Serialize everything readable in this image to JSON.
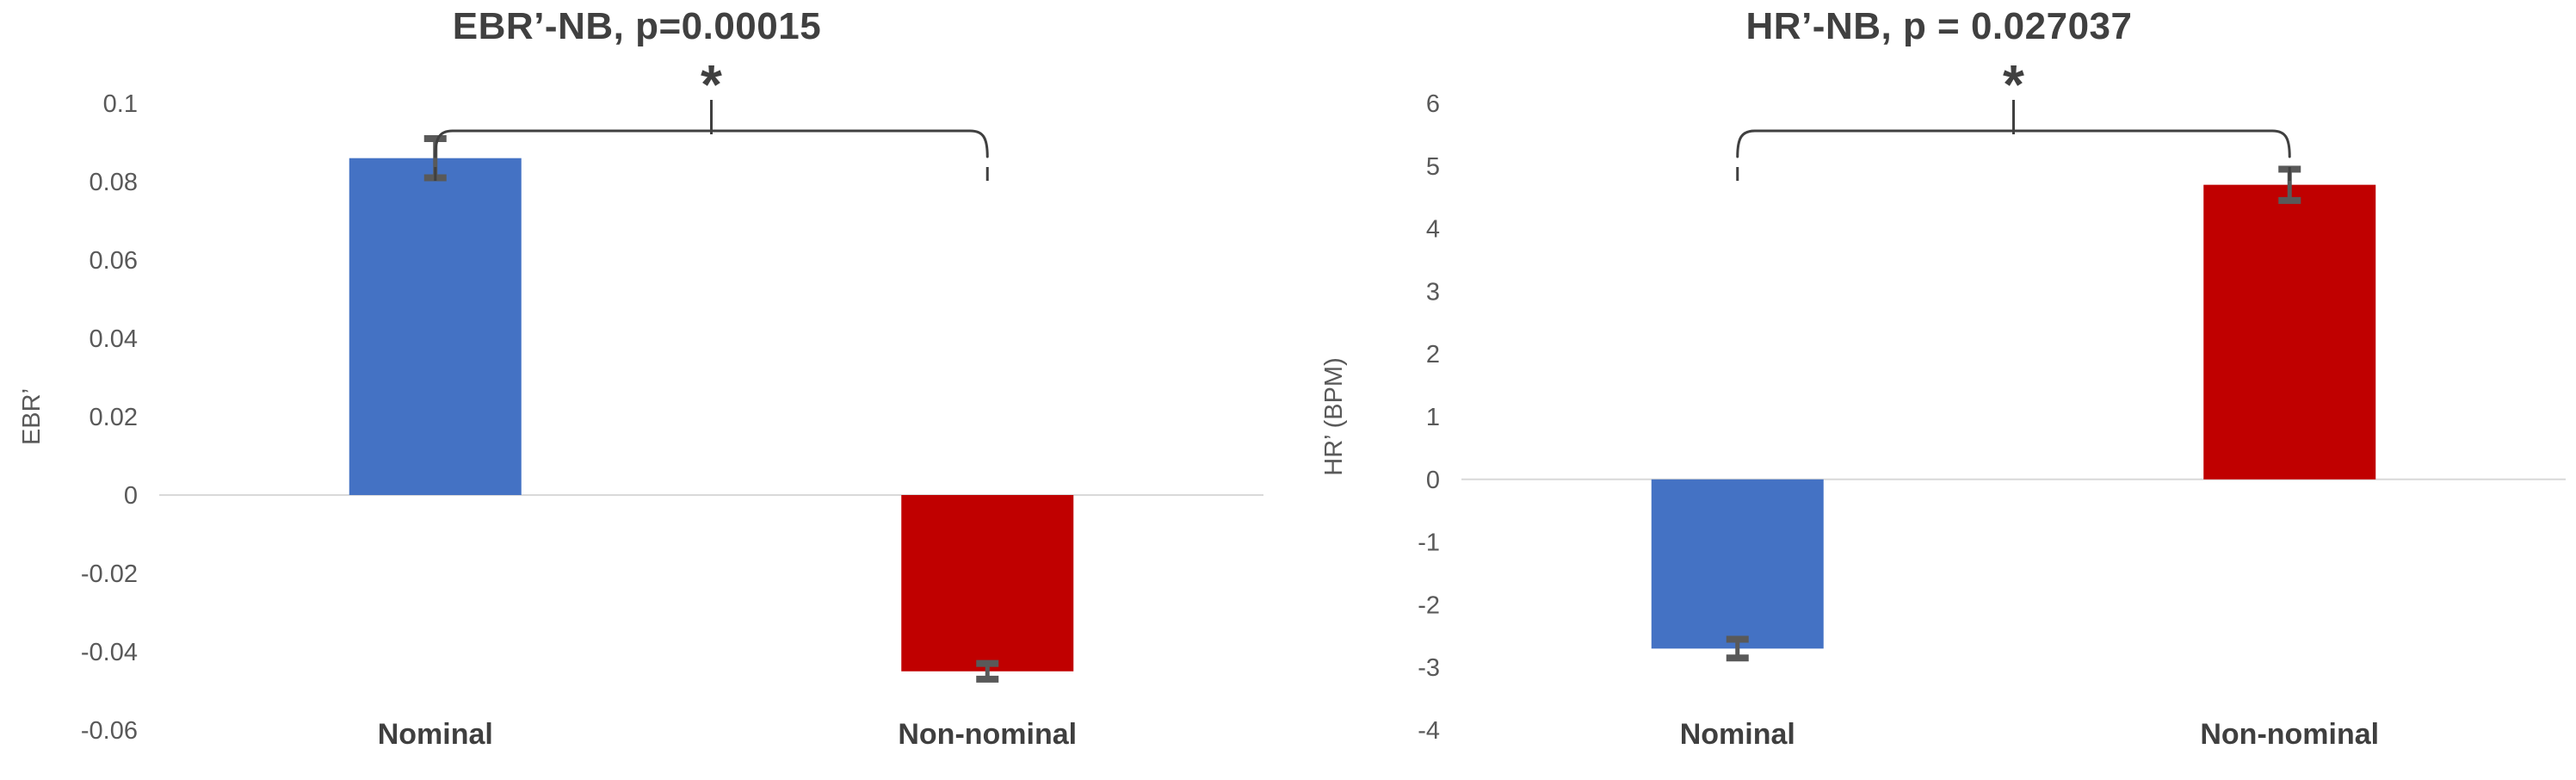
{
  "page": {
    "background": "#FFFFFF"
  },
  "colors": {
    "bar_blue": "#4472C4",
    "bar_red": "#C00000",
    "error_bar": "#595959",
    "zero_gridline": "#D9D9D9",
    "title_text": "#404040",
    "tick_text": "#595959",
    "category_text": "#3F3F3F",
    "bracket": "#404040"
  },
  "chart_data": [
    {
      "type": "bar",
      "title": "EBR’-NB, p=0.00015",
      "xlabel": "",
      "ylabel": "EBR’",
      "categories": [
        "Nominal",
        "Non-nominal"
      ],
      "values": [
        0.086,
        -0.045
      ],
      "errors": [
        0.005,
        0.002
      ],
      "bar_colors": [
        "#4472C4",
        "#C00000"
      ],
      "ylim": [
        -0.06,
        0.1
      ],
      "ytick_values": [
        0.1,
        0.08,
        0.06,
        0.04,
        0.02,
        0,
        -0.02,
        -0.04,
        -0.06
      ],
      "ytick_labels": [
        "0.1",
        "0.08",
        "0.06",
        "0.04",
        "0.02",
        "0",
        "-0.02",
        "-0.04",
        "-0.06"
      ],
      "grid": "zero-line-only",
      "legend_position": "none",
      "significance_label": "*",
      "significance_between": [
        "Nominal",
        "Non-nominal"
      ]
    },
    {
      "type": "bar",
      "title": "HR’-NB, p = 0.027037",
      "xlabel": "",
      "ylabel": "HR’ (BPM)",
      "categories": [
        "Nominal",
        "Non-nominal"
      ],
      "values": [
        -2.7,
        4.7
      ],
      "errors": [
        0.15,
        0.25
      ],
      "bar_colors": [
        "#4472C4",
        "#C00000"
      ],
      "ylim": [
        -4,
        6
      ],
      "ytick_values": [
        6,
        5,
        4,
        3,
        2,
        1,
        0,
        -1,
        -2,
        -3,
        -4
      ],
      "ytick_labels": [
        "6",
        "5",
        "4",
        "3",
        "2",
        "1",
        "0",
        "-1",
        "-2",
        "-3",
        "-4"
      ],
      "grid": "zero-line-only",
      "legend_position": "none",
      "significance_label": "*",
      "significance_between": [
        "Nominal",
        "Non-nominal"
      ]
    }
  ]
}
